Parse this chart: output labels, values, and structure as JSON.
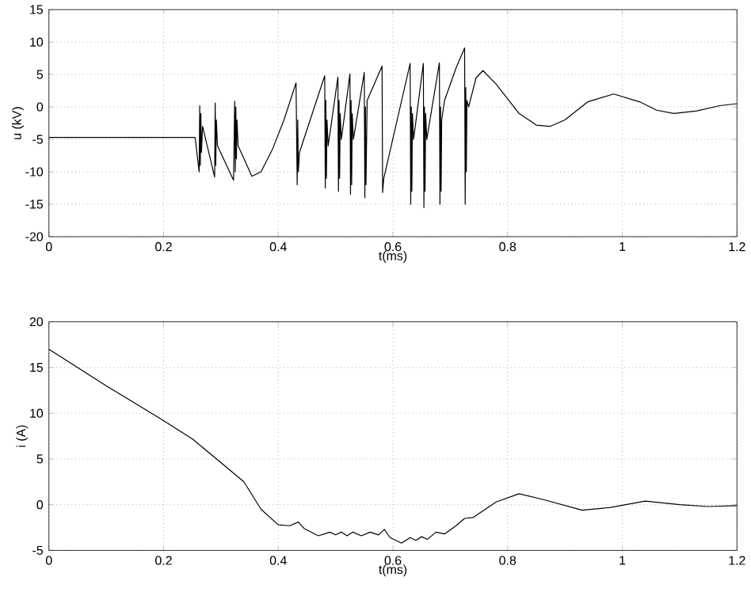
{
  "chart_data": [
    {
      "type": "line",
      "xlabel": "t(ms)",
      "ylabel": "u (kV)",
      "color": "#000000",
      "grid": true,
      "x": [
        0,
        0.255,
        0.262,
        0.263,
        0.264,
        0.265,
        0.266,
        0.268,
        0.289,
        0.29,
        0.291,
        0.292,
        0.294,
        0.322,
        0.324,
        0.325,
        0.326,
        0.327,
        0.328,
        0.33,
        0.354,
        0.37,
        0.39,
        0.41,
        0.431,
        0.433,
        0.434,
        0.435,
        0.437,
        0.481,
        0.482,
        0.483,
        0.484,
        0.485,
        0.487,
        0.504,
        0.505,
        0.506,
        0.507,
        0.508,
        0.51,
        0.525,
        0.526,
        0.527,
        0.528,
        0.529,
        0.531,
        0.55,
        0.551,
        0.552,
        0.553,
        0.555,
        0.581,
        0.582,
        0.584,
        0.63,
        0.631,
        0.632,
        0.633,
        0.634,
        0.636,
        0.653,
        0.654,
        0.655,
        0.656,
        0.657,
        0.659,
        0.681,
        0.682,
        0.683,
        0.684,
        0.685,
        0.69,
        0.71,
        0.725,
        0.726,
        0.727,
        0.728,
        0.729,
        0.732,
        0.745,
        0.757,
        0.78,
        0.82,
        0.85,
        0.874,
        0.9,
        0.94,
        0.985,
        1.03,
        1.06,
        1.09,
        1.13,
        1.17,
        1.2
      ],
      "values": [
        -4.7,
        -4.7,
        -10,
        0.2,
        -9,
        -1,
        -7,
        -3,
        -10.8,
        0.6,
        -9,
        -2,
        -6,
        -11.3,
        0.9,
        -10,
        0,
        -8,
        -2,
        -6,
        -10.7,
        -10,
        -6.5,
        -2,
        3.7,
        -12,
        -2,
        -10,
        -7,
        4.8,
        -12.5,
        1,
        -11,
        -2,
        -6,
        4.6,
        -13,
        1,
        -11,
        -1,
        -5,
        5.1,
        -13.5,
        1,
        -12,
        -1,
        -5,
        5.3,
        -14,
        0,
        -12,
        1,
        6.3,
        -13.2,
        -11,
        6.7,
        -15,
        0,
        -13,
        -1,
        -5,
        6.7,
        -15.5,
        0,
        -13,
        -1,
        -5,
        6.8,
        -15,
        0,
        -13,
        -2,
        1,
        6,
        9.1,
        -15,
        3,
        -10,
        1,
        0,
        4.5,
        5.6,
        3.5,
        -1,
        -2.8,
        -3.0,
        -2,
        0.8,
        2.0,
        0.8,
        -0.5,
        -1.0,
        -0.6,
        0.2,
        0.5
      ],
      "xlim": [
        0,
        1.2
      ],
      "ylim": [
        -20,
        15
      ],
      "xticks": [
        0,
        0.2,
        0.4,
        0.6,
        0.8,
        1,
        1.2
      ],
      "yticks": [
        -20,
        -15,
        -10,
        -5,
        0,
        5,
        10,
        15
      ]
    },
    {
      "type": "line",
      "xlabel": "t(ms)",
      "ylabel": "i (A)",
      "color": "#000000",
      "grid": true,
      "x": [
        0,
        0.1,
        0.2,
        0.25,
        0.3,
        0.34,
        0.37,
        0.4,
        0.42,
        0.435,
        0.445,
        0.47,
        0.49,
        0.5,
        0.51,
        0.52,
        0.53,
        0.545,
        0.56,
        0.575,
        0.585,
        0.595,
        0.615,
        0.63,
        0.64,
        0.65,
        0.66,
        0.675,
        0.69,
        0.71,
        0.725,
        0.74,
        0.78,
        0.82,
        0.86,
        0.93,
        0.98,
        1.04,
        1.1,
        1.15,
        1.2
      ],
      "values": [
        17,
        13,
        9.2,
        7.2,
        4.6,
        2.5,
        -0.5,
        -2.2,
        -2.3,
        -1.9,
        -2.6,
        -3.4,
        -3.0,
        -3.3,
        -3.0,
        -3.4,
        -3.0,
        -3.4,
        -3.0,
        -3.3,
        -2.7,
        -3.6,
        -4.2,
        -3.6,
        -3.9,
        -3.5,
        -3.8,
        -3.0,
        -3.2,
        -2.3,
        -1.5,
        -1.4,
        0.3,
        1.2,
        0.6,
        -0.6,
        -0.3,
        0.4,
        0.0,
        -0.2,
        -0.1
      ],
      "xlim": [
        0,
        1.2
      ],
      "ylim": [
        -5,
        20
      ],
      "xticks": [
        0,
        0.2,
        0.4,
        0.6,
        0.8,
        1,
        1.2
      ],
      "yticks": [
        -5,
        0,
        5,
        10,
        15,
        20
      ]
    }
  ]
}
